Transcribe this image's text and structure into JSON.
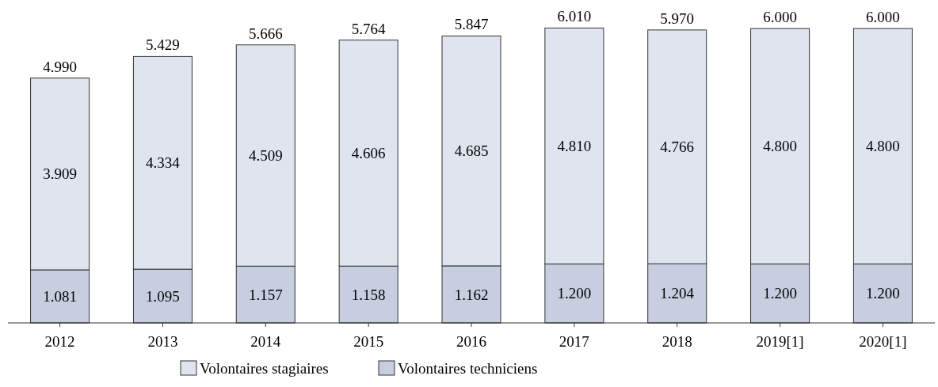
{
  "chart_data": {
    "type": "bar",
    "stacked": true,
    "categories": [
      "2012",
      "2013",
      "2014",
      "2015",
      "2016",
      "2017",
      "2018",
      "2019[1]",
      "2020[1]"
    ],
    "ylim": [
      0,
      6000
    ],
    "legend": "bottom",
    "tick_labels": "x",
    "series": [
      {
        "name": "Volontaires techniciens",
        "color": "#c6cee0",
        "values": [
          1081,
          1095,
          1157,
          1158,
          1162,
          1200,
          1204,
          1200,
          1200
        ],
        "value_labels": [
          "1.081",
          "1.095",
          "1.157",
          "1.158",
          "1.162",
          "1.200",
          "1.204",
          "1.200",
          "1.200"
        ]
      },
      {
        "name": "Volontaires stagiaires",
        "color": "#dfe4ee",
        "values": [
          3909,
          4334,
          4509,
          4606,
          4685,
          4810,
          4766,
          4800,
          4800
        ],
        "value_labels": [
          "3.909",
          "4.334",
          "4.509",
          "4.606",
          "4.685",
          "4.810",
          "4.766",
          "4.800",
          "4.800"
        ]
      }
    ],
    "totals": [
      "4.990",
      "5.429",
      "5.666",
      "5.764",
      "5.847",
      "6.010",
      "5.970",
      "6.000",
      "6.000"
    ]
  }
}
